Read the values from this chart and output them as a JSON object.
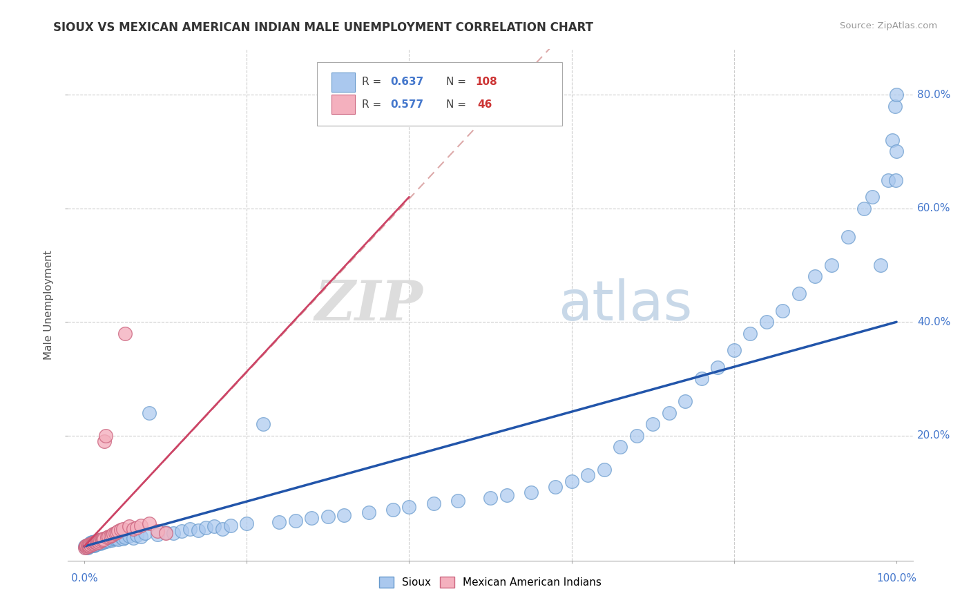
{
  "title": "SIOUX VS MEXICAN AMERICAN INDIAN MALE UNEMPLOYMENT CORRELATION CHART",
  "source": "Source: ZipAtlas.com",
  "ylabel": "Male Unemployment",
  "xlim": [
    -0.02,
    1.02
  ],
  "ylim": [
    -0.02,
    0.88
  ],
  "xtick_vals": [
    0.0,
    0.2,
    0.4,
    0.6,
    0.8,
    1.0
  ],
  "xtick_labels_edge": [
    "0.0%",
    "100.0%"
  ],
  "ytick_vals": [
    0.2,
    0.4,
    0.6,
    0.8
  ],
  "ytick_labels": [
    "20.0%",
    "40.0%",
    "60.0%",
    "80.0%"
  ],
  "sioux_color": "#aac8ee",
  "sioux_edge": "#6699cc",
  "mexican_color": "#f4b0be",
  "mexican_edge": "#cc6680",
  "line1_color": "#2255aa",
  "line2_color": "#cc4466",
  "line2_dash_color": "#ddaaaa",
  "label_color": "#4477cc",
  "watermark_zip": "ZIP",
  "watermark_atlas": "atlas",
  "legend_r1": "0.637",
  "legend_n1": "108",
  "legend_r2": "0.577",
  "legend_n2": "46",
  "sioux_x": [
    0.001,
    0.002,
    0.003,
    0.003,
    0.004,
    0.004,
    0.005,
    0.005,
    0.006,
    0.006,
    0.007,
    0.007,
    0.008,
    0.008,
    0.009,
    0.009,
    0.01,
    0.01,
    0.01,
    0.012,
    0.012,
    0.013,
    0.013,
    0.014,
    0.015,
    0.015,
    0.016,
    0.017,
    0.018,
    0.019,
    0.02,
    0.021,
    0.022,
    0.023,
    0.024,
    0.025,
    0.026,
    0.027,
    0.028,
    0.03,
    0.032,
    0.034,
    0.036,
    0.038,
    0.04,
    0.042,
    0.045,
    0.048,
    0.05,
    0.055,
    0.06,
    0.065,
    0.07,
    0.075,
    0.08,
    0.09,
    0.1,
    0.11,
    0.12,
    0.13,
    0.14,
    0.15,
    0.16,
    0.17,
    0.18,
    0.2,
    0.22,
    0.24,
    0.26,
    0.28,
    0.3,
    0.32,
    0.35,
    0.38,
    0.4,
    0.43,
    0.46,
    0.5,
    0.52,
    0.55,
    0.58,
    0.6,
    0.62,
    0.64,
    0.66,
    0.68,
    0.7,
    0.72,
    0.74,
    0.76,
    0.78,
    0.8,
    0.82,
    0.84,
    0.86,
    0.88,
    0.9,
    0.92,
    0.94,
    0.96,
    0.97,
    0.98,
    0.99,
    0.995,
    0.998,
    0.999,
    1.0,
    1.0
  ],
  "sioux_y": [
    0.005,
    0.003,
    0.004,
    0.006,
    0.003,
    0.007,
    0.004,
    0.008,
    0.005,
    0.009,
    0.006,
    0.01,
    0.007,
    0.011,
    0.008,
    0.012,
    0.006,
    0.009,
    0.013,
    0.007,
    0.011,
    0.008,
    0.014,
    0.01,
    0.009,
    0.015,
    0.012,
    0.011,
    0.016,
    0.013,
    0.01,
    0.014,
    0.012,
    0.017,
    0.013,
    0.015,
    0.014,
    0.016,
    0.018,
    0.015,
    0.017,
    0.016,
    0.019,
    0.018,
    0.02,
    0.017,
    0.022,
    0.019,
    0.021,
    0.023,
    0.02,
    0.025,
    0.022,
    0.028,
    0.24,
    0.026,
    0.03,
    0.028,
    0.032,
    0.035,
    0.033,
    0.038,
    0.04,
    0.036,
    0.042,
    0.045,
    0.22,
    0.048,
    0.05,
    0.055,
    0.058,
    0.06,
    0.065,
    0.07,
    0.075,
    0.08,
    0.085,
    0.09,
    0.095,
    0.1,
    0.11,
    0.12,
    0.13,
    0.14,
    0.18,
    0.2,
    0.22,
    0.24,
    0.26,
    0.3,
    0.32,
    0.35,
    0.38,
    0.4,
    0.42,
    0.45,
    0.48,
    0.5,
    0.55,
    0.6,
    0.62,
    0.5,
    0.65,
    0.72,
    0.78,
    0.65,
    0.8,
    0.7
  ],
  "mexican_x": [
    0.001,
    0.002,
    0.003,
    0.003,
    0.004,
    0.005,
    0.005,
    0.006,
    0.007,
    0.008,
    0.009,
    0.01,
    0.011,
    0.012,
    0.013,
    0.014,
    0.015,
    0.016,
    0.017,
    0.018,
    0.019,
    0.02,
    0.021,
    0.022,
    0.023,
    0.024,
    0.025,
    0.026,
    0.028,
    0.03,
    0.032,
    0.034,
    0.036,
    0.038,
    0.04,
    0.042,
    0.045,
    0.048,
    0.05,
    0.055,
    0.06,
    0.065,
    0.07,
    0.08,
    0.09,
    0.1
  ],
  "mexican_y": [
    0.003,
    0.005,
    0.004,
    0.007,
    0.006,
    0.005,
    0.008,
    0.007,
    0.009,
    0.008,
    0.01,
    0.009,
    0.011,
    0.01,
    0.012,
    0.013,
    0.011,
    0.014,
    0.015,
    0.013,
    0.016,
    0.015,
    0.017,
    0.016,
    0.018,
    0.017,
    0.19,
    0.2,
    0.021,
    0.022,
    0.024,
    0.025,
    0.027,
    0.028,
    0.03,
    0.032,
    0.034,
    0.036,
    0.38,
    0.04,
    0.035,
    0.038,
    0.042,
    0.045,
    0.032,
    0.028
  ]
}
